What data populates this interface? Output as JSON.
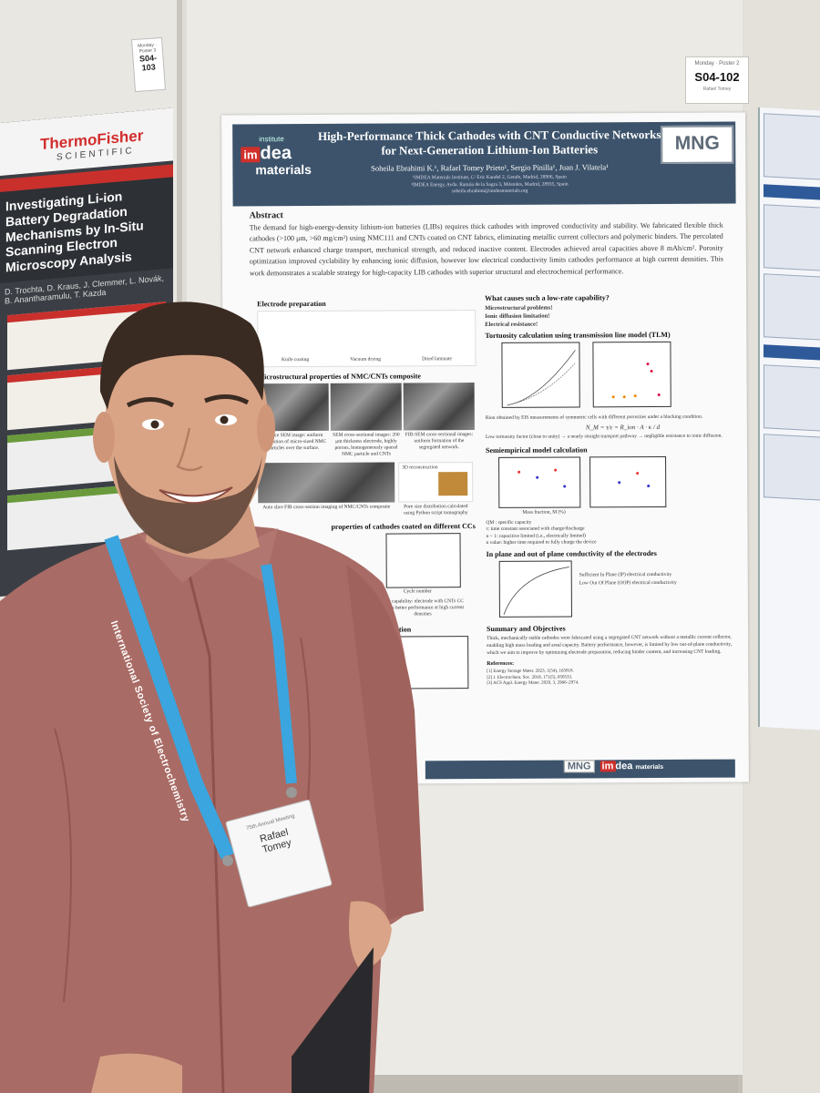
{
  "left_tag": {
    "label": "S04-103",
    "small": "Monday · Poster 3"
  },
  "right_tag": {
    "small": "Monday · Poster 2",
    "label": "S04-102",
    "name": "Rafael Tomey"
  },
  "left_poster": {
    "brand": "ThermoFisher",
    "brand_sub": "SCIENTIFIC",
    "title": "Investigating Li-ion Battery Degradation Mechanisms by In-Situ Scanning Electron Microscopy Analysis",
    "authors": "D. Trochta, D. Kraus, J. Clemmer, L. Novák, B. Anantharamulu, T. Kazda"
  },
  "poster": {
    "logo": {
      "institute": "institute",
      "im": "im",
      "dea": "dea",
      "materials": "materials"
    },
    "title": "High-Performance Thick Cathodes with CNT Conductive Networks for Next-Generation Lithium-Ion Batteries",
    "authors": "Soheila Ebrahimi K.¹, Rafael Tomey Prieto¹, Sergio Pinilla¹, Juan J. Vilatela¹",
    "aff1": "¹IMDEA Materials Institute, C/ Eric Kandel 2, Getafe, Madrid, 28906, Spain",
    "aff2": "²IMDEA Energy, Avda. Ramón de la Sagra 3, Móstoles, Madrid, 28935, Spain",
    "email": "soheila.ebrahimi@imdeamaterials.org",
    "mng": "MNG",
    "abstract_title": "Abstract",
    "abstract": "The demand for high-energy-density lithium-ion batteries (LIBs) requires thick cathodes with improved conductivity and stability. We fabricated flexible thick cathodes (>100 μm, >60 mg/cm²) using NMC111 and CNTs coated on CNT fabrics, eliminating metallic current collectors and polymeric binders. The percolated CNT network enhanced charge transport, mechanical strength, and reduced inactive content. Electrodes achieved areal capacities above 8 mAh/cm². Porosity optimization improved cyclability by enhancing ionic diffusion, however low electrical conductivity limits cathodes performance at high current densities. This work demonstrates a scalable strategy for high-capacity LIB cathodes with superior structural and electrochemical performance.",
    "left": {
      "electrode_title": "Electrode preparation",
      "steps": [
        "Knife coating",
        "Vacuum drying",
        "Dried laminate"
      ],
      "micro_title": "Microstructural properties of NMC/CNTs composite",
      "caption1": "Surface SEM image: uniform distribution of micro-sized NMC particles over the surface.",
      "caption2": "SEM cross-sectional images: 200 μm thickness electrode, highly porous, homogeneously spaced NMC particle and CNTs",
      "caption3": "FIB-SEM cross-sectional images: uniform formation of the segregated network.",
      "caption4": "Auto slice FIB cross-section imaging of NMC/CNTs composite",
      "caption5": "Pore size distribution calculated using Python script tomography",
      "recon": "3D reconstruction",
      "props_title": "properties of cathodes coated on different CCs",
      "rate_caption": "Rate capability: electrode with CNTs CC shows better performance at high current densities",
      "diff_title": "fraction",
      "cycle_axis": "Cycle number"
    },
    "right": {
      "q_title": "What causes such a low-rate capability?",
      "q_items": [
        "Microstructural problems!",
        "Ionic diffusion limitation!",
        "Electrical resistance!"
      ],
      "tlm_title": "Tortuosity calculation using transmission line model (TLM)",
      "tlm_text": "Rion obtained by EIS measurements of symmetric cells with different porosities under a blocking condition.",
      "formula": "N_M = τ/ε = R_ion · A · κ / d",
      "tort_text": "Low tortuosity factor (close to unity) → a nearly straight transport pathway → negligible resistance to ionic diffusion.",
      "semi_title": "Semiempirical model calculation",
      "mass_axis": "Mass fraction, M (%)",
      "semi_text1": "QM : specific capacity",
      "semi_text2": "τ: time constant associated with charge/discharge",
      "semi_text3": "n ~ 1: capacitive limited (i.e., electrically limited)",
      "semi_text4": "n value: higher time required to fully charge the device",
      "plane_title": "In plane and out of plane conductivity of the electrodes",
      "plane_b1": "Sufficient In Plane (IP) electrical conductivity",
      "plane_b2": "Low Out Of Plane (OOP) electrical conductivity",
      "summary_title": "Summary and Objectives",
      "summary": "Thick, mechanically stable cathodes were fabricated using a segregated CNT network without a metallic current collector, enabling high mass loading and areal capacity. Battery performance, however, is limited by low out-of-plane conductivity, which we aim to improve by optimizing electrode preparation, reducing binder content, and increasing CNT loading.",
      "refs_title": "References:",
      "refs": [
        "[1] Energy Storage Mater. 2023, 1(54), 165818.",
        "[2] J. Electrochem. Soc. 2018, 171(5), 050533.",
        "[3] ACS Appl. Energy Mater. 2020, 3, 2966–2974."
      ]
    },
    "footer": {
      "mng": "MNG",
      "im": "im",
      "dea": "dea",
      "materials": "materials"
    }
  },
  "badge": {
    "event": "75th Annual Meeting",
    "first": "Rafael",
    "last": "Tomey"
  },
  "lanyard": "International Society of Electrochemistry",
  "colors": {
    "poster_header": "#3c536b",
    "imdea_red": "#d1302c",
    "lanyard": "#3aa5de",
    "shirt": "#a86a64"
  }
}
